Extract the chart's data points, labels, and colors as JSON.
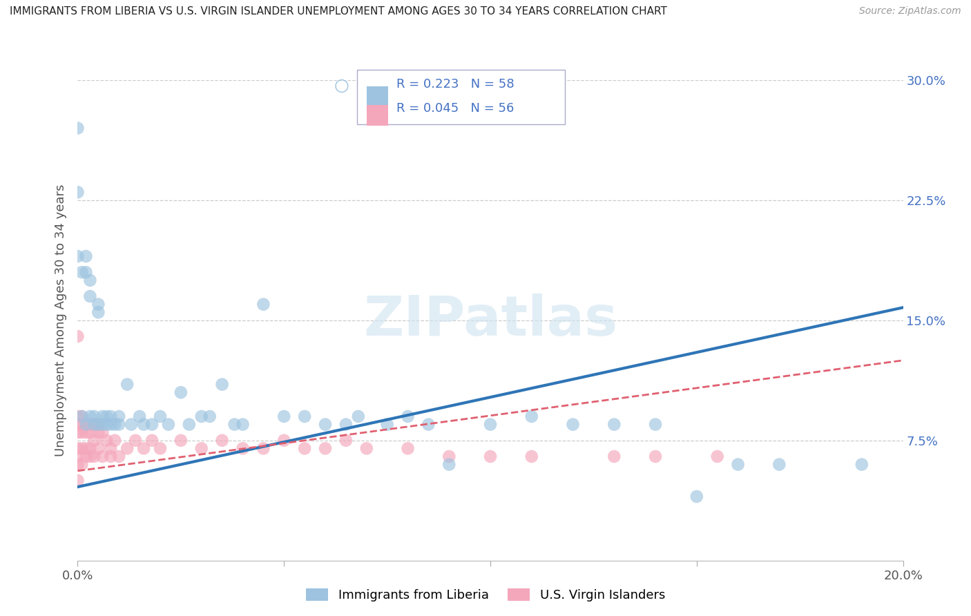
{
  "title": "IMMIGRANTS FROM LIBERIA VS U.S. VIRGIN ISLANDER UNEMPLOYMENT AMONG AGES 30 TO 34 YEARS CORRELATION CHART",
  "source": "Source: ZipAtlas.com",
  "ylabel": "Unemployment Among Ages 30 to 34 years",
  "xlim": [
    0.0,
    0.2
  ],
  "ylim": [
    0.0,
    0.3
  ],
  "ytick_positions": [
    0.0,
    0.075,
    0.15,
    0.225,
    0.3
  ],
  "ytick_labels": [
    "",
    "7.5%",
    "15.0%",
    "22.5%",
    "30.0%"
  ],
  "xtick_positions": [
    0.0,
    0.05,
    0.1,
    0.15,
    0.2
  ],
  "xtick_labels": [
    "0.0%",
    "",
    "",
    "",
    "20.0%"
  ],
  "blue_R": 0.223,
  "blue_N": 58,
  "pink_R": 0.045,
  "pink_N": 56,
  "blue_color": "#9dc3e0",
  "pink_color": "#f4a7bb",
  "blue_line_color": "#2e75b6",
  "pink_line_color": "#e06070",
  "watermark_text": "ZIPatlas",
  "legend_label_blue": "Immigrants from Liberia",
  "legend_label_pink": "U.S. Virgin Islanders",
  "blue_line_x0": 0.0,
  "blue_line_y0": 0.046,
  "blue_line_x1": 0.2,
  "blue_line_y1": 0.158,
  "pink_line_x0": 0.0,
  "pink_line_y0": 0.056,
  "pink_line_x1": 0.2,
  "pink_line_y1": 0.125,
  "blue_scatter_x": [
    0.0,
    0.0,
    0.0,
    0.001,
    0.001,
    0.002,
    0.002,
    0.002,
    0.003,
    0.003,
    0.003,
    0.004,
    0.004,
    0.005,
    0.005,
    0.005,
    0.006,
    0.006,
    0.007,
    0.007,
    0.008,
    0.008,
    0.009,
    0.01,
    0.01,
    0.012,
    0.013,
    0.015,
    0.016,
    0.018,
    0.02,
    0.022,
    0.025,
    0.027,
    0.03,
    0.032,
    0.035,
    0.038,
    0.04,
    0.045,
    0.05,
    0.055,
    0.06,
    0.065,
    0.068,
    0.075,
    0.08,
    0.085,
    0.09,
    0.1,
    0.11,
    0.12,
    0.13,
    0.14,
    0.15,
    0.16,
    0.17,
    0.19
  ],
  "blue_scatter_y": [
    0.23,
    0.19,
    0.27,
    0.09,
    0.18,
    0.18,
    0.19,
    0.085,
    0.175,
    0.165,
    0.09,
    0.09,
    0.085,
    0.16,
    0.155,
    0.085,
    0.085,
    0.09,
    0.085,
    0.09,
    0.085,
    0.09,
    0.085,
    0.09,
    0.085,
    0.11,
    0.085,
    0.09,
    0.085,
    0.085,
    0.09,
    0.085,
    0.105,
    0.085,
    0.09,
    0.09,
    0.11,
    0.085,
    0.085,
    0.16,
    0.09,
    0.09,
    0.085,
    0.085,
    0.09,
    0.085,
    0.09,
    0.085,
    0.06,
    0.085,
    0.09,
    0.085,
    0.085,
    0.085,
    0.04,
    0.06,
    0.06,
    0.06
  ],
  "pink_scatter_x": [
    0.0,
    0.0,
    0.0,
    0.0,
    0.0,
    0.0,
    0.0,
    0.0,
    0.001,
    0.001,
    0.001,
    0.001,
    0.001,
    0.002,
    0.002,
    0.002,
    0.002,
    0.003,
    0.003,
    0.003,
    0.003,
    0.004,
    0.004,
    0.004,
    0.005,
    0.005,
    0.005,
    0.006,
    0.006,
    0.007,
    0.008,
    0.008,
    0.009,
    0.01,
    0.012,
    0.014,
    0.016,
    0.018,
    0.02,
    0.025,
    0.03,
    0.035,
    0.04,
    0.045,
    0.05,
    0.055,
    0.06,
    0.065,
    0.07,
    0.08,
    0.09,
    0.1,
    0.11,
    0.13,
    0.14,
    0.155
  ],
  "pink_scatter_y": [
    0.14,
    0.09,
    0.085,
    0.08,
    0.07,
    0.065,
    0.06,
    0.05,
    0.09,
    0.085,
    0.08,
    0.07,
    0.06,
    0.085,
    0.08,
    0.07,
    0.065,
    0.085,
    0.08,
    0.07,
    0.065,
    0.085,
    0.075,
    0.065,
    0.085,
    0.08,
    0.07,
    0.065,
    0.08,
    0.075,
    0.07,
    0.065,
    0.075,
    0.065,
    0.07,
    0.075,
    0.07,
    0.075,
    0.07,
    0.075,
    0.07,
    0.075,
    0.07,
    0.07,
    0.075,
    0.07,
    0.07,
    0.075,
    0.07,
    0.07,
    0.065,
    0.065,
    0.065,
    0.065,
    0.065,
    0.065
  ]
}
